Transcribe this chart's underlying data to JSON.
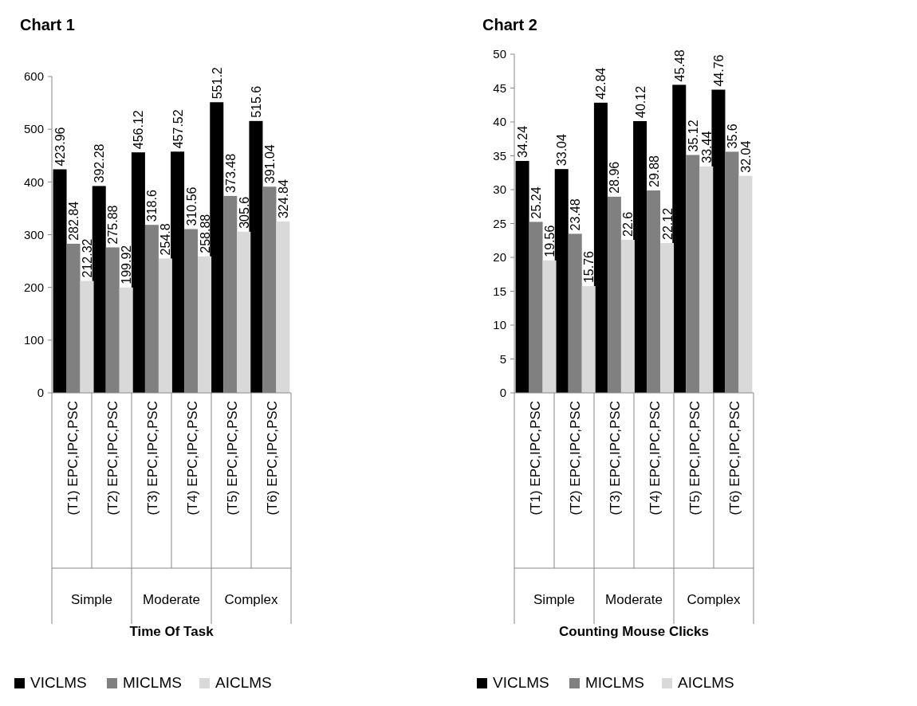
{
  "chart_data": [
    {
      "type": "bar",
      "title": "Chart 1",
      "xlabel": "Time Of Task",
      "categories": [
        "(T1) EPC,IPC,PSC",
        "(T2) EPC,IPC,PSC",
        "(T3) EPC,IPC,PSC",
        "(T4) EPC,IPC,PSC",
        "(T5) EPC,IPC,PSC",
        "(T6) EPC,IPC,PSC"
      ],
      "series": [
        {
          "name": "VICLMS",
          "color": "#000000",
          "values": [
            423.96,
            392.28,
            456.12,
            457.52,
            551.2,
            515.6
          ]
        },
        {
          "name": "MICLMS",
          "color": "#808080",
          "values": [
            282.84,
            275.88,
            318.6,
            310.56,
            373.48,
            391.04
          ]
        },
        {
          "name": "AICLMS",
          "color": "#d9d9d9",
          "values": [
            212.32,
            199.92,
            254.8,
            258.88,
            305.6,
            324.84
          ]
        }
      ],
      "annotations": [
        "Simple",
        "Moderate",
        "Complex"
      ],
      "ylim": [
        0,
        600
      ],
      "yticks": [
        0,
        100,
        200,
        300,
        400,
        500,
        600
      ],
      "data_labels": true,
      "legend": "bottom",
      "grid": false
    },
    {
      "type": "bar",
      "title": "Chart 2",
      "xlabel": "Counting Mouse Clicks",
      "categories": [
        "(T1) EPC,IPC,PSC",
        "(T2) EPC,IPC,PSC",
        "(T3) EPC,IPC,PSC",
        "(T4) EPC,IPC,PSC",
        "(T5) EPC,IPC,PSC",
        "(T6) EPC,IPC,PSC"
      ],
      "series": [
        {
          "name": "VICLMS",
          "color": "#000000",
          "values": [
            34.24,
            33.04,
            42.84,
            40.12,
            45.48,
            44.76
          ]
        },
        {
          "name": "MICLMS",
          "color": "#808080",
          "values": [
            25.24,
            23.48,
            28.96,
            29.88,
            35.12,
            35.6
          ]
        },
        {
          "name": "AICLMS",
          "color": "#d9d9d9",
          "values": [
            19.56,
            15.76,
            22.6,
            22.12,
            33.44,
            32.04
          ]
        }
      ],
      "annotations": [
        "Simple",
        "Moderate",
        "Complex"
      ],
      "ylim": [
        0,
        50
      ],
      "yticks": [
        0,
        5,
        10,
        15,
        20,
        25,
        30,
        35,
        40,
        45,
        50
      ],
      "data_labels": true,
      "legend": "bottom",
      "grid": false
    }
  ]
}
